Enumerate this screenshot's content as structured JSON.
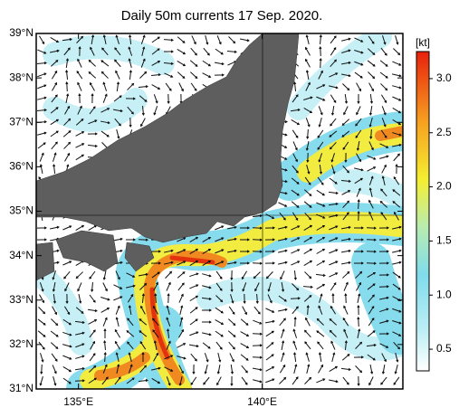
{
  "title": "Daily 50m currents 17 Sep. 2020.",
  "map": {
    "ylim": [
      31,
      39
    ],
    "yticks": [
      {
        "value": 31,
        "label": "31°N"
      },
      {
        "value": 32,
        "label": "32°N"
      },
      {
        "value": 33,
        "label": "33°N"
      },
      {
        "value": 34,
        "label": "34°N"
      },
      {
        "value": 35,
        "label": "35°N"
      },
      {
        "value": 36,
        "label": "36°N"
      },
      {
        "value": 37,
        "label": "37°N"
      },
      {
        "value": 38,
        "label": "38°N"
      },
      {
        "value": 39,
        "label": "39°N"
      }
    ],
    "xlim": [
      133.85,
      143.83
    ],
    "xticks": [
      {
        "value": 135,
        "label": "135°E"
      },
      {
        "value": 140,
        "label": "140°E"
      }
    ]
  },
  "colorbar": {
    "unit": "[kt]",
    "lim": [
      0.3,
      3.25
    ],
    "ticks": [
      {
        "value": 0.5,
        "label": "0.5"
      },
      {
        "value": 1,
        "label": "1.0"
      },
      {
        "value": 1.5,
        "label": "1.5"
      },
      {
        "value": 2,
        "label": "2.0"
      },
      {
        "value": 2.5,
        "label": "2.5"
      },
      {
        "value": 3,
        "label": "3.0"
      }
    ]
  }
}
